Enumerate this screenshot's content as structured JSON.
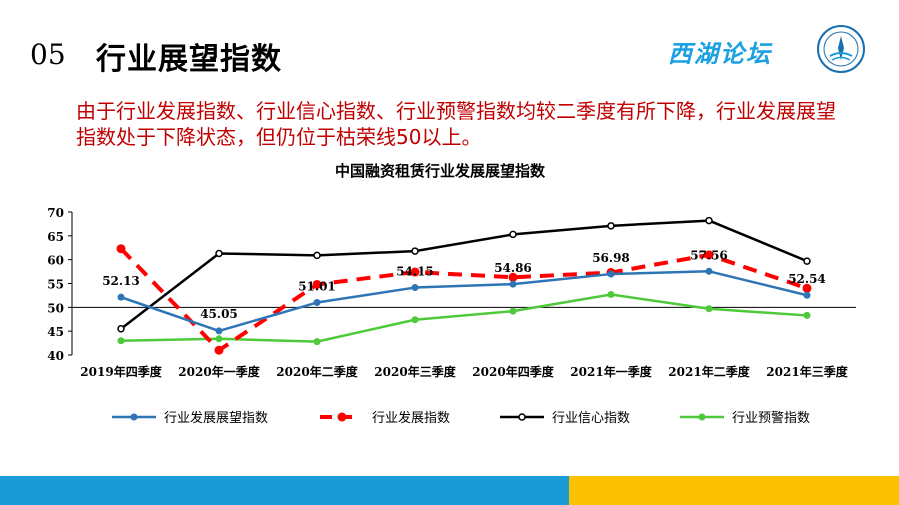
{
  "header": {
    "number": "05",
    "title": "行业展望指数",
    "brand": "西湖论坛"
  },
  "subtitle": "由于行业发展指数、行业信心指数、行业预警指数均较二季度有所下降，行业发展展望指数处于下降状态，但仍位于枯荣线50以上。",
  "colors": {
    "blue_bar": "#1a9bd7",
    "yellow_bar": "#fbc100",
    "subtitle_red": "#c00000"
  },
  "chart_data": {
    "type": "line",
    "title": "中国融资租赁行业发展展望指数",
    "categories": [
      "2019年四季度",
      "2020年一季度",
      "2020年二季度",
      "2020年三季度",
      "2020年四季度",
      "2021年一季度",
      "2021年二季度",
      "2021年三季度"
    ],
    "ylim": [
      40,
      70
    ],
    "yticks": [
      40,
      45,
      50,
      55,
      60,
      65,
      70
    ],
    "reference_line": 50,
    "legend_position": "bottom",
    "series": [
      {
        "name": "行业发展展望指数",
        "color": "#2e75b6",
        "dashed": false,
        "marker": true,
        "values": [
          52.13,
          45.05,
          51.01,
          54.15,
          54.86,
          56.98,
          57.56,
          52.54
        ],
        "labels": [
          "52.13",
          "45.05",
          "51.01",
          "54.15",
          "54.86",
          "56.98",
          "57.56",
          "52.54"
        ]
      },
      {
        "name": "行业发展指数",
        "color": "#ff0000",
        "dashed": true,
        "marker": true,
        "values": [
          62.3,
          41.0,
          54.8,
          57.4,
          56.3,
          57.3,
          61.0,
          54.0
        ]
      },
      {
        "name": "行业信心指数",
        "color": "#000000",
        "dashed": false,
        "marker": true,
        "hollow": true,
        "values": [
          45.5,
          61.3,
          60.9,
          61.8,
          65.3,
          67.1,
          68.2,
          59.7
        ]
      },
      {
        "name": "行业预警指数",
        "color": "#4ec93a",
        "dashed": false,
        "marker": true,
        "values": [
          43.0,
          43.4,
          42.8,
          47.4,
          49.2,
          52.7,
          49.7,
          48.3
        ]
      }
    ]
  }
}
